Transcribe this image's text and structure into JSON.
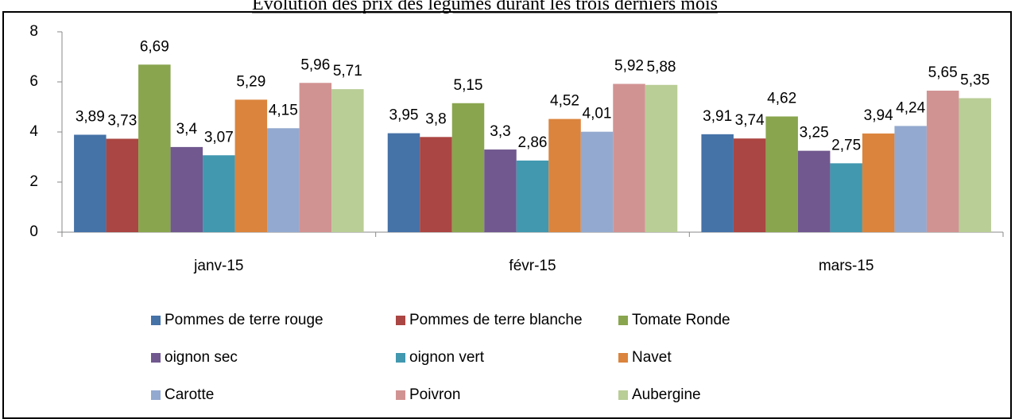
{
  "chart_data": {
    "type": "bar",
    "title": "Évolution des prix des légumes durant les trois derniers mois",
    "categories": [
      "janv-15",
      "févr-15",
      "mars-15"
    ],
    "ylim": [
      0,
      8
    ],
    "yticks": [
      0,
      2,
      4,
      6,
      8
    ],
    "grid": false,
    "legend": "bottom",
    "series": [
      {
        "name": "Pommes de terre rouge",
        "color": "#4572a7",
        "values": [
          3.89,
          3.95,
          3.91
        ],
        "value_labels": [
          "3,89",
          "3,95",
          "3,91"
        ]
      },
      {
        "name": "Pommes de terre blanche",
        "color": "#aa4643",
        "values": [
          3.73,
          3.8,
          3.74
        ],
        "value_labels": [
          "3,73",
          "3,8",
          "3,74"
        ]
      },
      {
        "name": "Tomate Ronde",
        "color": "#89a54e",
        "values": [
          6.69,
          5.15,
          4.62
        ],
        "value_labels": [
          "6,69",
          "5,15",
          "4,62"
        ]
      },
      {
        "name": "oignon sec",
        "color": "#71588f",
        "values": [
          3.4,
          3.3,
          3.25
        ],
        "value_labels": [
          "3,4",
          "3,3",
          "3,25"
        ]
      },
      {
        "name": "oignon vert",
        "color": "#4198af",
        "values": [
          3.07,
          2.86,
          2.75
        ],
        "value_labels": [
          "3,07",
          "2,86",
          "2,75"
        ]
      },
      {
        "name": "Navet",
        "color": "#db843d",
        "values": [
          5.29,
          4.52,
          3.94
        ],
        "value_labels": [
          "5,29",
          "4,52",
          "3,94"
        ]
      },
      {
        "name": "Carotte",
        "color": "#93a9cf",
        "values": [
          4.15,
          4.01,
          4.24
        ],
        "value_labels": [
          "4,15",
          "4,01",
          "4,24"
        ]
      },
      {
        "name": "Poivron",
        "color": "#d19392",
        "values": [
          5.96,
          5.92,
          5.65
        ],
        "value_labels": [
          "5,96",
          "5,92",
          "5,65"
        ]
      },
      {
        "name": "Aubergine",
        "color": "#b9cd96",
        "values": [
          5.71,
          5.88,
          5.35
        ],
        "value_labels": [
          "5,71",
          "5,88",
          "5,35"
        ]
      }
    ]
  }
}
